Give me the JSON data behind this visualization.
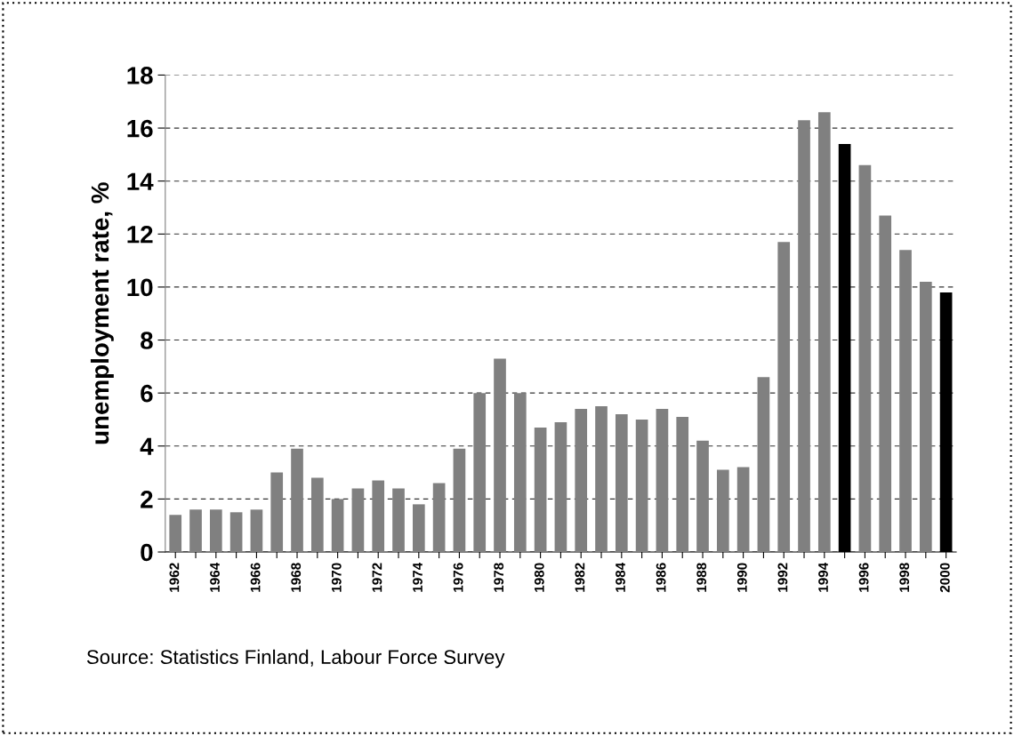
{
  "chart_data": {
    "type": "bar",
    "ylabel": "unemployment rate, %",
    "categories": [
      "1962",
      null,
      "1964",
      null,
      "1966",
      null,
      "1968",
      null,
      "1970",
      null,
      "1972",
      null,
      "1974",
      null,
      "1976",
      null,
      "1978",
      null,
      "1980",
      null,
      "1982",
      null,
      "1984",
      null,
      "1986",
      null,
      "1988",
      null,
      "1990",
      null,
      "1992",
      null,
      "1994",
      null,
      "1996",
      null,
      "1998",
      null,
      "2000"
    ],
    "values": [
      1.4,
      1.6,
      1.6,
      1.5,
      1.6,
      3.0,
      3.9,
      2.8,
      2.0,
      2.4,
      2.7,
      2.4,
      1.8,
      2.6,
      3.9,
      6.0,
      7.3,
      6.0,
      4.7,
      4.9,
      5.4,
      5.5,
      5.2,
      5.0,
      5.4,
      5.1,
      4.2,
      3.1,
      3.2,
      6.6,
      11.7,
      16.3,
      16.6,
      15.4,
      14.6,
      12.7,
      11.4,
      10.2,
      9.8
    ],
    "colors": [
      "#808080",
      "#808080",
      "#808080",
      "#808080",
      "#808080",
      "#808080",
      "#808080",
      "#808080",
      "#808080",
      "#808080",
      "#808080",
      "#808080",
      "#808080",
      "#808080",
      "#808080",
      "#808080",
      "#808080",
      "#808080",
      "#808080",
      "#808080",
      "#808080",
      "#808080",
      "#808080",
      "#808080",
      "#808080",
      "#808080",
      "#808080",
      "#808080",
      "#808080",
      "#808080",
      "#808080",
      "#808080",
      "#808080",
      "#000000",
      "#808080",
      "#808080",
      "#808080",
      "#808080",
      "#000000"
    ],
    "ylim": [
      0,
      18
    ],
    "yticks": [
      0,
      2,
      4,
      6,
      8,
      10,
      12,
      14,
      16,
      18
    ],
    "grid": "y",
    "annotations": [
      "Source: Statistics Finland, Labour Force Survey"
    ]
  }
}
